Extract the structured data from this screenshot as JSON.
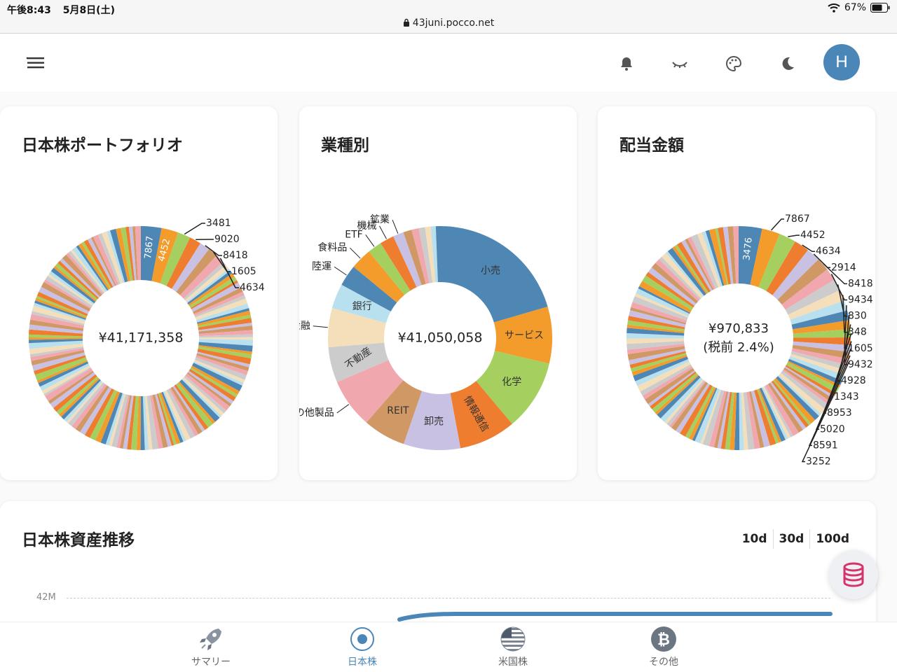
{
  "status_bar": {
    "time": "午後8:43",
    "date": "5月8日(土)",
    "battery": "67%",
    "url": "43juni.pocco.net"
  },
  "header": {
    "avatar_letter": "H"
  },
  "cards": {
    "portfolio": {
      "title": "日本株ポートフォリオ",
      "center": "¥41,171,358"
    },
    "sector": {
      "title": "業種別",
      "center": "¥41,050,058"
    },
    "dividend": {
      "title": "配当金額",
      "center_line1": "¥970,833",
      "center_line2": "(税前 2.4%)"
    }
  },
  "chart_data": [
    {
      "type": "pie",
      "title": "日本株ポートフォリオ",
      "center_label": "¥41,171,358",
      "slice_labels_inside": [
        "7867",
        "4452"
      ],
      "slice_labels_outside": [
        "3481",
        "9020",
        "8418",
        "1605",
        "4634"
      ]
    },
    {
      "type": "pie",
      "title": "業種別",
      "center_label": "¥41,050,058",
      "categories": [
        "小売",
        "サービス",
        "化学",
        "情報通信",
        "卸売",
        "REIT",
        "その他製品",
        "不動産",
        "他金融",
        "銀行",
        "陸運",
        "食料品",
        "ETF",
        "機械",
        "鉱業"
      ],
      "inside_label_categories": [
        "小売",
        "サービス",
        "化学",
        "情報通信",
        "卸売",
        "REIT",
        "不動産",
        "銀行"
      ],
      "values": [
        20,
        8,
        10,
        8,
        8,
        6,
        7,
        5,
        5.5,
        3.5,
        3,
        3,
        2,
        2,
        1.5
      ]
    },
    {
      "type": "pie",
      "title": "配当金額",
      "center_label": "¥970,833 (税前 2.4%)",
      "slice_labels_inside": [
        "3476"
      ],
      "slice_labels_outside": [
        "7867",
        "4452",
        "4634",
        "2914",
        "8418",
        "9434",
        "830",
        "348",
        "1605",
        "9432",
        "4928",
        "1343",
        "8953",
        "5020",
        "8591",
        "3252"
      ]
    }
  ],
  "trend": {
    "title": "日本株資産推移",
    "ranges": [
      "10d",
      "30d",
      "100d"
    ],
    "y_tick": "42M"
  },
  "nav": [
    {
      "label": "サマリー",
      "icon": "rocket-icon"
    },
    {
      "label": "日本株",
      "icon": "target-icon"
    },
    {
      "label": "米国株",
      "icon": "us-flag-icon"
    },
    {
      "label": "その他",
      "icon": "bitcoin-icon"
    }
  ],
  "colors": {
    "accent": "#4a86b8",
    "fab_icon": "#d6336c"
  }
}
